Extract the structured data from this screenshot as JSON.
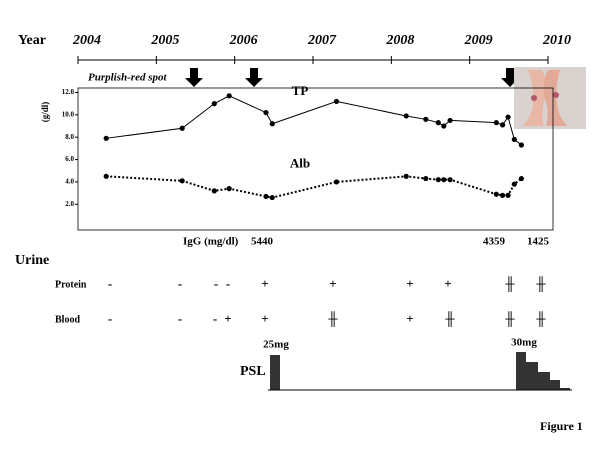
{
  "chart_data": {
    "type": "line",
    "xlabel": "Year",
    "ylabel": "(g/dl)",
    "xlim": [
      2004,
      2010
    ],
    "xticks": [
      2004,
      2005,
      2006,
      2007,
      2008,
      2009,
      2010
    ],
    "ylim": [
      -0.3,
      12.4
    ],
    "yticks": [
      {
        "value": 2,
        "label": "2.0"
      },
      {
        "value": 4,
        "label": "4.0"
      },
      {
        "value": 6,
        "label": "6.0"
      },
      {
        "value": 8,
        "label": "8.0"
      },
      {
        "value": 10,
        "label": "10.0"
      },
      {
        "value": 12,
        "label": "12.0"
      }
    ],
    "x": [
      2004.36,
      2005.33,
      2005.74,
      2005.93,
      2006.4,
      2006.48,
      2007.3,
      2008.19,
      2008.44,
      2008.6,
      2008.67,
      2008.75,
      2009.34,
      2009.42,
      2009.49,
      2009.57,
      2009.66
    ],
    "series": [
      {
        "name": "TP",
        "color": "#000000",
        "values": [
          7.9,
          8.8,
          11.0,
          11.7,
          10.2,
          9.2,
          11.2,
          9.9,
          9.6,
          9.3,
          9.0,
          9.5,
          9.3,
          9.1,
          9.8,
          7.8,
          7.3
        ]
      },
      {
        "name": "Alb",
        "color": "#000000",
        "values": [
          4.5,
          4.1,
          3.2,
          3.4,
          2.7,
          2.6,
          4.0,
          4.5,
          4.3,
          4.2,
          4.2,
          4.2,
          2.9,
          2.8,
          2.8,
          3.8,
          4.3
        ]
      }
    ],
    "annotation": "Purplish-red spot"
  },
  "igg": {
    "label": "IgG (mg/dl)",
    "values": [
      "5440",
      "4359",
      "1425"
    ]
  },
  "urine": {
    "title": "Urine",
    "rows": [
      {
        "label": "Protein",
        "marks": [
          "-",
          "-",
          "-",
          "-",
          "+",
          "+",
          "+",
          "+",
          "╫",
          "╫"
        ]
      },
      {
        "label": "Blood",
        "marks": [
          "-",
          "-",
          "-",
          "+",
          "+",
          "╫",
          "+",
          "╫",
          "╫",
          "╫"
        ]
      }
    ]
  },
  "psl": {
    "label": "PSL",
    "doses": [
      "25mg",
      "30mg"
    ]
  },
  "caption": "Figure 1"
}
